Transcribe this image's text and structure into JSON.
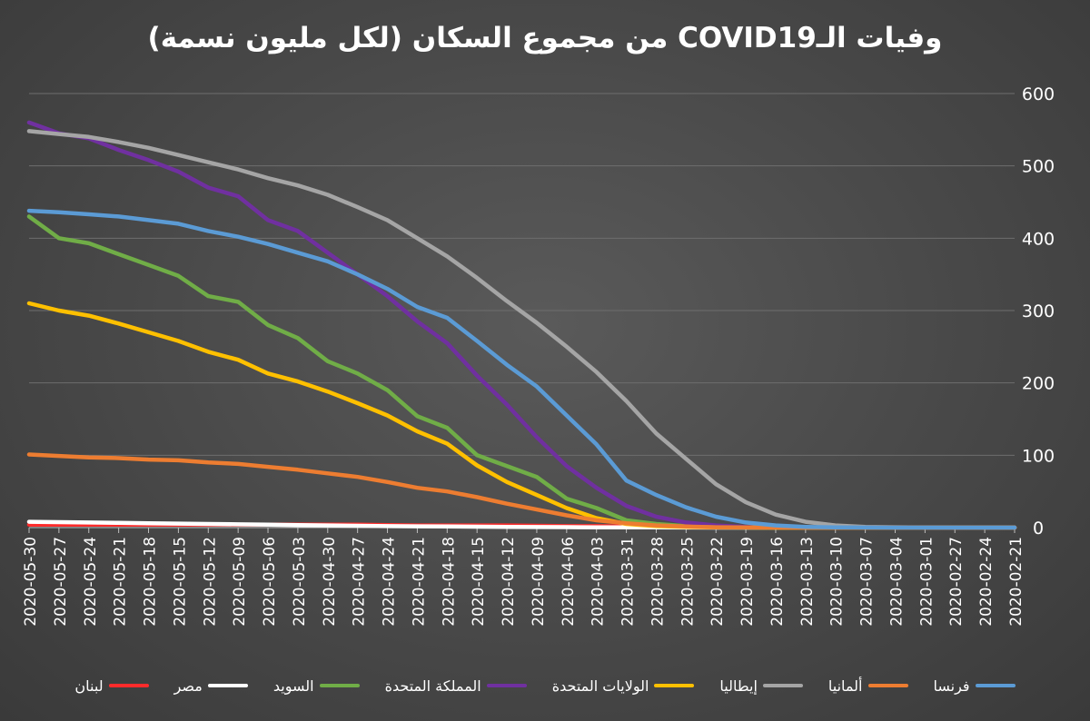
{
  "chart_data": {
    "type": "line",
    "title": "وفيات الـCOVID19 من مجموع السكان (لكل مليون نسمة)",
    "xlabel": "",
    "ylabel": "",
    "ylim": [
      0,
      600
    ],
    "yticks": [
      0,
      100,
      200,
      300,
      400,
      500,
      600
    ],
    "y_axis_position": "right",
    "x_axis_reversed": true,
    "grid": true,
    "legend_position": "bottom",
    "x": [
      "2020-05-30",
      "2020-05-27",
      "2020-05-24",
      "2020-05-21",
      "2020-05-18",
      "2020-05-15",
      "2020-05-12",
      "2020-05-09",
      "2020-05-06",
      "2020-05-03",
      "2020-04-30",
      "2020-04-27",
      "2020-04-24",
      "2020-04-21",
      "2020-04-18",
      "2020-04-15",
      "2020-04-12",
      "2020-04-09",
      "2020-04-06",
      "2020-04-03",
      "2020-03-31",
      "2020-03-28",
      "2020-03-25",
      "2020-03-22",
      "2020-03-19",
      "2020-03-16",
      "2020-03-13",
      "2020-03-10",
      "2020-03-07",
      "2020-03-04",
      "2020-03-01",
      "2020-02-27",
      "2020-02-24",
      "2020-02-21"
    ],
    "series": [
      {
        "name": "فرنسا",
        "color": "#5b9bd5",
        "values": [
          438,
          436,
          433,
          430,
          425,
          420,
          410,
          402,
          392,
          380,
          368,
          350,
          330,
          305,
          290,
          258,
          225,
          195,
          155,
          115,
          65,
          45,
          28,
          15,
          7,
          3,
          1,
          0.3,
          0.1,
          0,
          0,
          0,
          0,
          0
        ]
      },
      {
        "name": "ألمانيا",
        "color": "#ed7d31",
        "values": [
          101,
          99,
          97,
          96,
          94,
          93,
          90,
          88,
          84,
          80,
          75,
          70,
          63,
          55,
          50,
          42,
          33,
          25,
          17,
          10,
          6,
          3,
          1.5,
          0.5,
          0.2,
          0.1,
          0,
          0,
          0,
          0,
          0,
          0,
          0,
          0
        ]
      },
      {
        "name": "إيطاليا",
        "color": "#a5a5a5",
        "values": [
          548,
          544,
          540,
          533,
          525,
          515,
          505,
          495,
          483,
          473,
          460,
          443,
          425,
          400,
          375,
          345,
          313,
          283,
          250,
          215,
          175,
          130,
          95,
          60,
          35,
          18,
          8,
          3,
          1,
          0.5,
          0.1,
          0,
          0,
          0
        ]
      },
      {
        "name": "الولايات المتحدة",
        "color": "#ffc000",
        "values": [
          310,
          300,
          293,
          282,
          270,
          258,
          243,
          232,
          213,
          202,
          188,
          172,
          155,
          133,
          116,
          86,
          63,
          45,
          27,
          13,
          5,
          2,
          1,
          0.3,
          0.1,
          0,
          0,
          0,
          0,
          0,
          0,
          0,
          0,
          0
        ]
      },
      {
        "name": "المملكة المتحدة",
        "color": "#7030a0",
        "values": [
          560,
          545,
          538,
          522,
          508,
          492,
          470,
          458,
          425,
          410,
          380,
          350,
          320,
          285,
          255,
          210,
          170,
          125,
          85,
          55,
          30,
          15,
          7,
          3,
          1,
          0.3,
          0.1,
          0,
          0,
          0,
          0,
          0,
          0,
          0
        ]
      },
      {
        "name": "السويد",
        "color": "#70ad47",
        "values": [
          430,
          400,
          393,
          378,
          363,
          348,
          320,
          312,
          280,
          262,
          230,
          213,
          190,
          154,
          138,
          100,
          85,
          70,
          40,
          27,
          10,
          5,
          2,
          1,
          0.3,
          0.1,
          0,
          0,
          0,
          0,
          0,
          0,
          0,
          0
        ]
      },
      {
        "name": "مصر",
        "color": "#ffffff",
        "values": [
          8,
          7.5,
          7,
          6.5,
          6,
          5.5,
          5,
          4.5,
          4,
          3.5,
          3,
          2.5,
          2,
          1.8,
          1.6,
          1.3,
          1,
          0.8,
          0.6,
          0.4,
          0.3,
          0.2,
          0.1,
          0,
          0,
          0,
          0,
          0,
          0,
          0,
          0,
          0,
          0,
          0
        ]
      },
      {
        "name": "لبنان",
        "color": "#ff2b2b",
        "values": [
          4,
          4,
          4,
          4,
          4,
          4,
          4,
          4,
          4,
          4,
          4,
          4,
          3.5,
          3,
          3,
          3,
          3,
          2.5,
          2,
          2,
          1.5,
          1,
          0.5,
          0.3,
          0.2,
          0.1,
          0,
          0,
          0,
          0,
          0,
          0,
          0,
          0
        ]
      }
    ]
  }
}
